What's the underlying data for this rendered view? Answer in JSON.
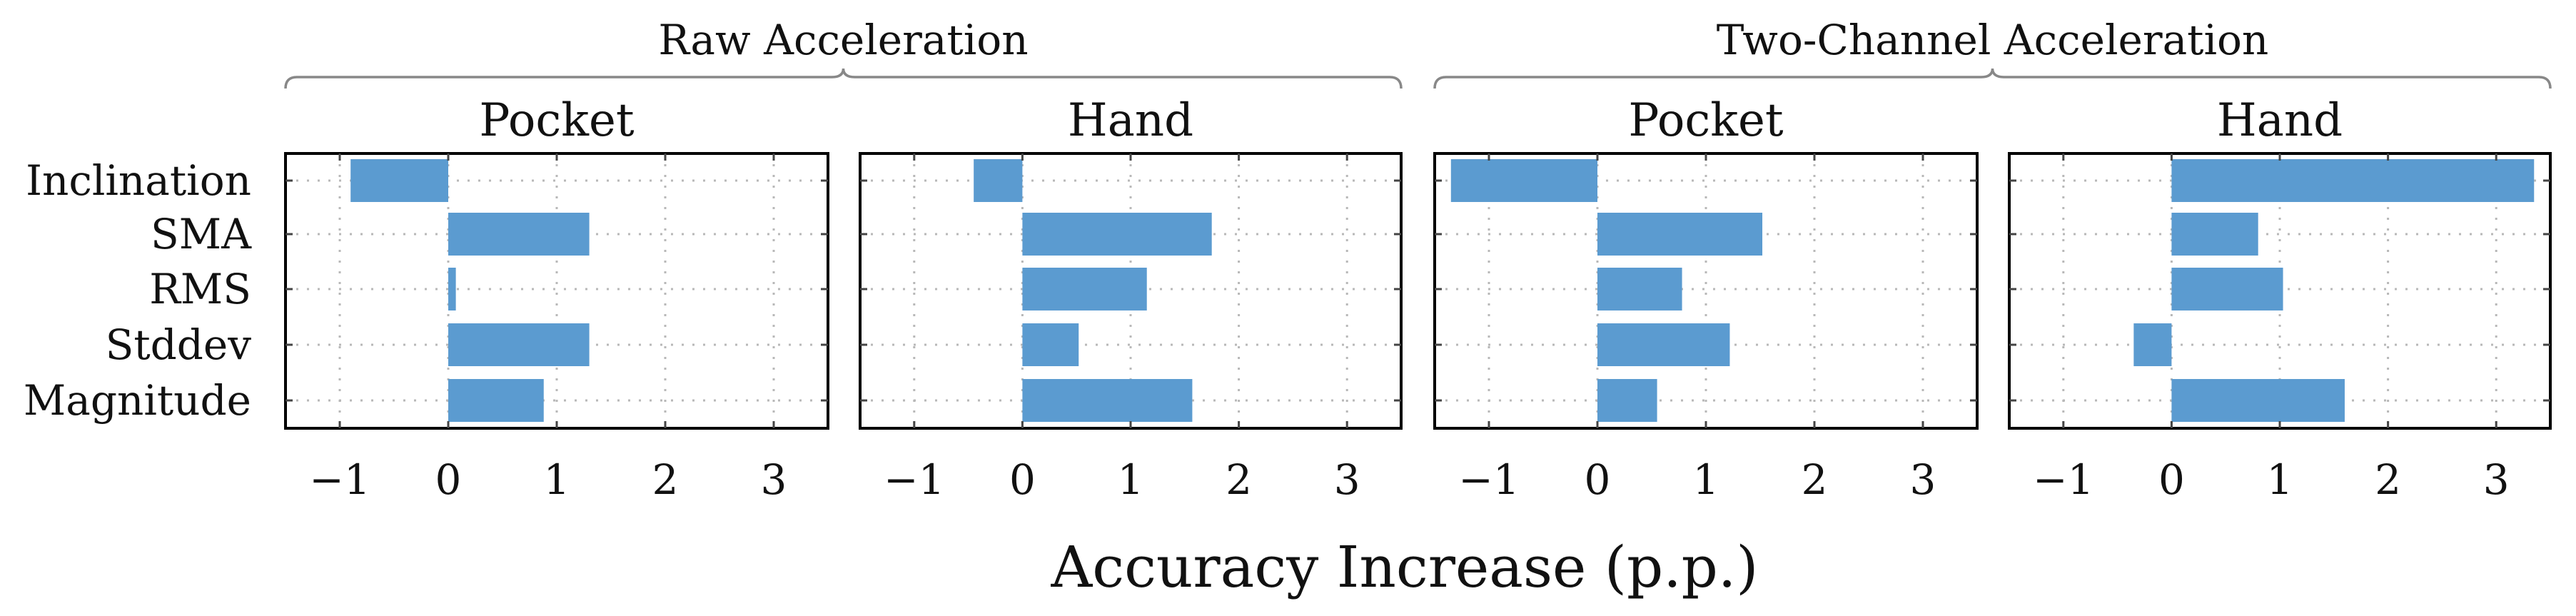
{
  "chart_data": {
    "type": "bar",
    "orientation": "horizontal",
    "categories": [
      "Inclination",
      "SMA",
      "RMS",
      "Stddev",
      "Magnitude"
    ],
    "xlabel": "Accuracy Increase (p.p.)",
    "xlim": [
      -1.5,
      3.5
    ],
    "xticks": [
      -1,
      0,
      1,
      2,
      3
    ],
    "xtick_labels": [
      "−1",
      "0",
      "1",
      "2",
      "3"
    ],
    "grid": true,
    "bar_color": "#5b9bd0",
    "groups": [
      {
        "title": "Raw Acceleration",
        "panels": [
          0,
          1
        ]
      },
      {
        "title": "Two-Channel Acceleration",
        "panels": [
          2,
          3
        ]
      }
    ],
    "panels": [
      {
        "title": "Pocket",
        "values": [
          -0.9,
          1.3,
          0.07,
          1.3,
          0.88
        ]
      },
      {
        "title": "Hand",
        "values": [
          -0.45,
          1.75,
          1.15,
          0.52,
          1.57
        ]
      },
      {
        "title": "Pocket",
        "values": [
          -1.35,
          1.52,
          0.78,
          1.22,
          0.55
        ]
      },
      {
        "title": "Hand",
        "values": [
          3.35,
          0.8,
          1.03,
          -0.35,
          1.6
        ]
      }
    ]
  }
}
